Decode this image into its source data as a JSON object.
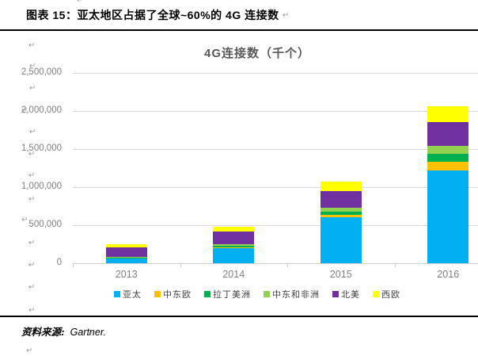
{
  "header": {
    "title": "图表 15：亚太地区占据了全球~60%的 4G 连接数",
    "paragraph_mark": "↵"
  },
  "chart": {
    "title": "4G连接数（千个）"
  },
  "chart_data": {
    "type": "bar",
    "stacked": true,
    "title": "4G连接数（千个）",
    "categories": [
      "2013",
      "2014",
      "2015",
      "2016"
    ],
    "series": [
      {
        "name": "亚太",
        "color": "#00B0F0",
        "values": [
          68000,
          205000,
          605000,
          1220000
        ]
      },
      {
        "name": "中东欧",
        "color": "#FFC000",
        "values": [
          2000,
          6000,
          35000,
          110000
        ]
      },
      {
        "name": "拉丁美洲",
        "color": "#00B050",
        "values": [
          5000,
          16000,
          42000,
          105000
        ]
      },
      {
        "name": "中东和非洲",
        "color": "#92D050",
        "values": [
          12000,
          28000,
          46000,
          105000
        ]
      },
      {
        "name": "北美",
        "color": "#7030A0",
        "values": [
          123000,
          165000,
          224000,
          310000
        ]
      },
      {
        "name": "西欧",
        "color": "#FFFF00",
        "values": [
          35000,
          62000,
          120000,
          215000
        ]
      }
    ],
    "totals": [
      245000,
      482000,
      1072000,
      2065000
    ],
    "xlabel": "",
    "ylabel": "",
    "ylim": [
      0,
      2500000
    ],
    "ytick_interval": 500000,
    "yticks": [
      "0",
      "500,000",
      "1,000,000",
      "1,500,000",
      "2,000,000",
      "2,500,000"
    ],
    "grid": true,
    "legend_position": "bottom"
  },
  "footer": {
    "source_label": "资料来源:",
    "source_value": "Gartner."
  },
  "colors": {
    "chart_title": "#595959",
    "axis_text": "#808080",
    "gridline": "#DADADA",
    "rule": "#000000"
  }
}
